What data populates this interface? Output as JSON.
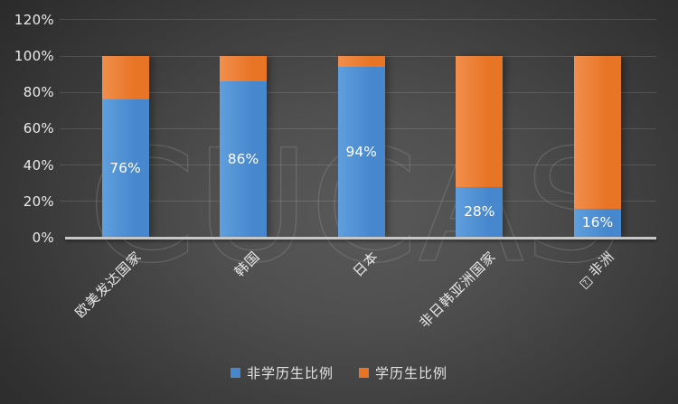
{
  "chart_data": {
    "type": "bar",
    "variant": "stacked-100-percent",
    "title": "",
    "categories": [
      "欧美发达国家",
      "韩国",
      "日本",
      "非日韩亚洲国家",
      "非洲"
    ],
    "category_prefix_glyph_index": 4,
    "missing_glyph_char": "?",
    "series": [
      {
        "name": "非学历生比例",
        "values": [
          76,
          86,
          94,
          28,
          16
        ],
        "labels": [
          "76%",
          "86%",
          "94%",
          "28%",
          "16%"
        ],
        "color": "#4787cd",
        "color_light": "#5f9fdd"
      },
      {
        "name": "学历生比例",
        "values": [
          24,
          14,
          6,
          72,
          84
        ],
        "labels": [],
        "color": "#e87425",
        "color_light": "#f18f4d"
      }
    ],
    "y_axis": {
      "max": 120,
      "ticks": [
        {
          "label": "0%",
          "value": 0
        },
        {
          "label": "20%",
          "value": 20
        },
        {
          "label": "40%",
          "value": 40
        },
        {
          "label": "60%",
          "value": 60
        },
        {
          "label": "80%",
          "value": 80
        },
        {
          "label": "100%",
          "value": 100
        },
        {
          "label": "120%",
          "value": 120
        }
      ]
    },
    "grid": true,
    "legend_position": "bottom",
    "watermark": "CUCAS"
  }
}
